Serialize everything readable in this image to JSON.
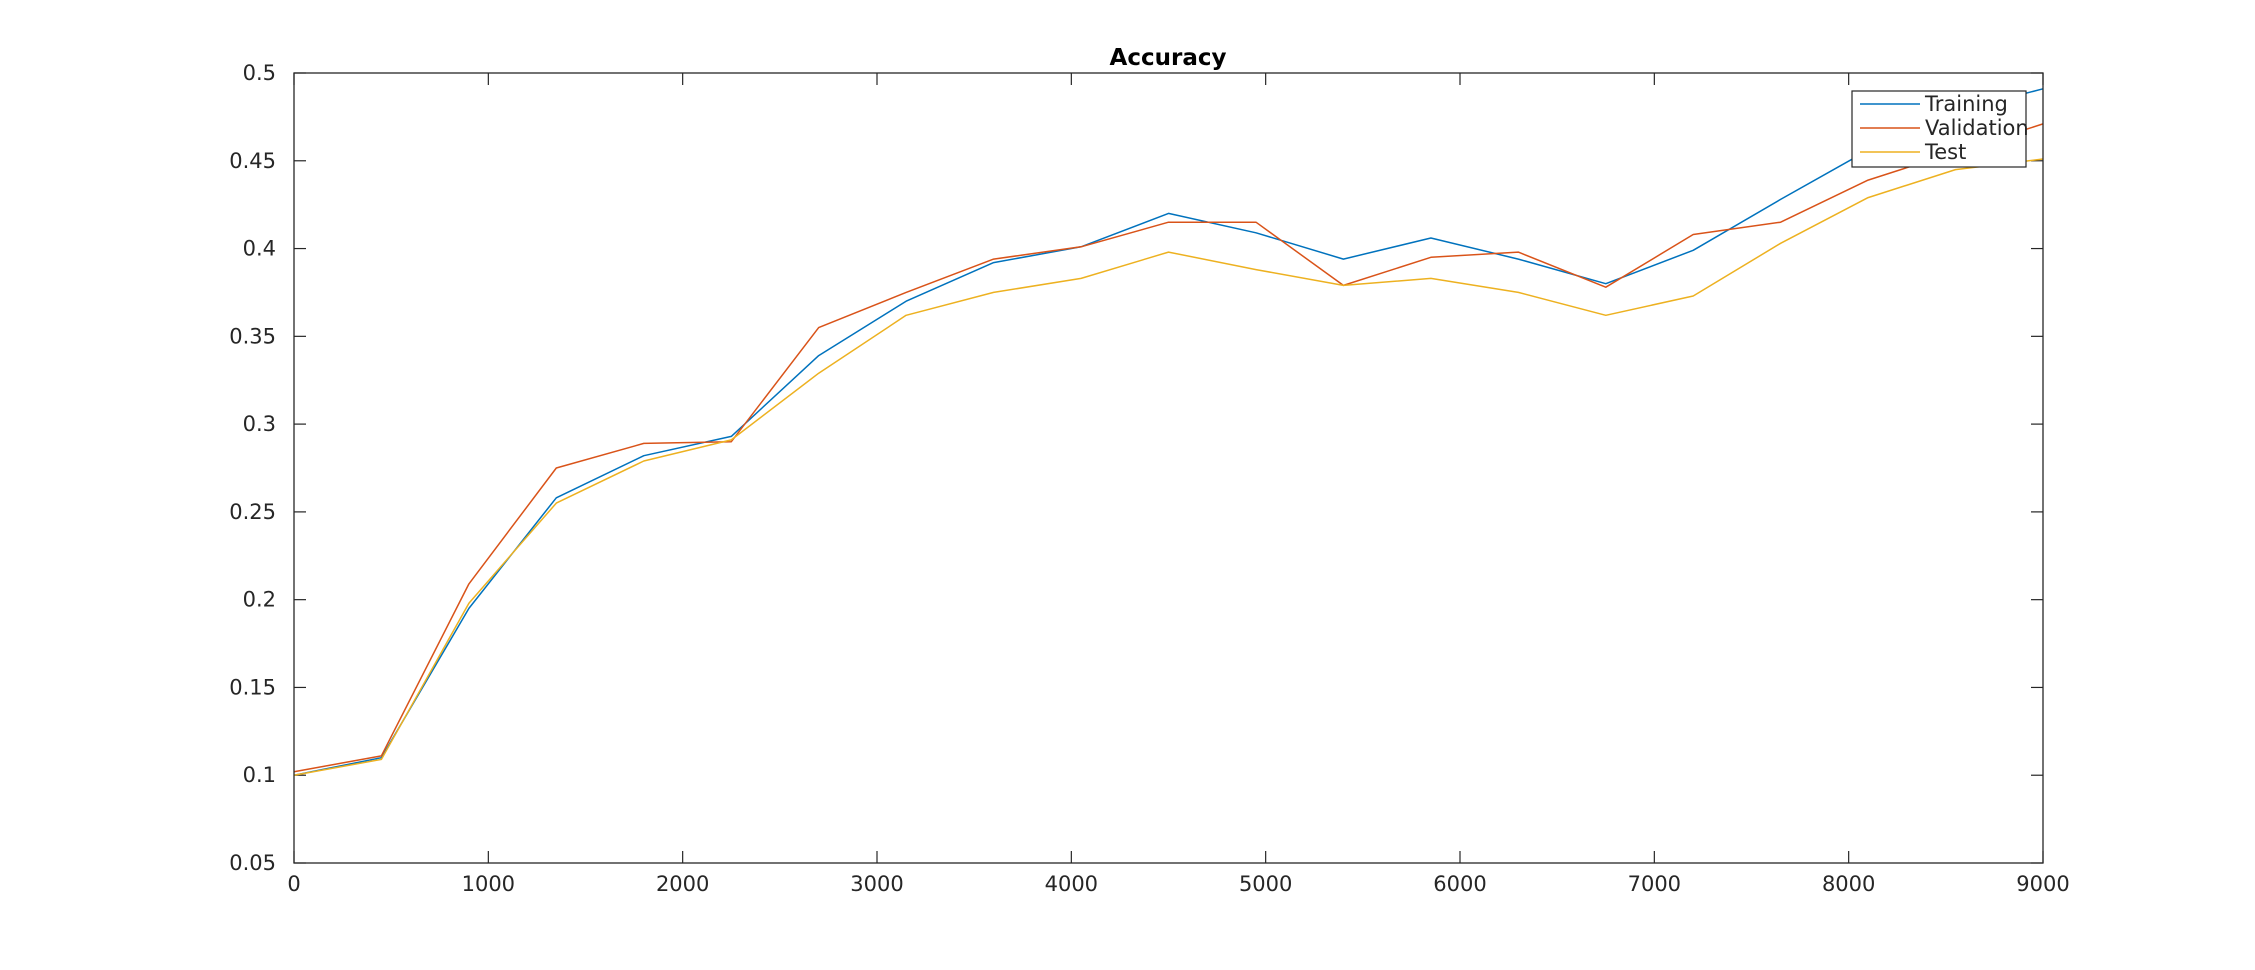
{
  "chart_data": {
    "type": "line",
    "title": "Accuracy",
    "xlabel": "",
    "ylabel": "",
    "xlim": [
      0,
      9000
    ],
    "ylim": [
      0.05,
      0.5
    ],
    "xticks": [
      0,
      1000,
      2000,
      3000,
      4000,
      5000,
      6000,
      7000,
      8000,
      9000
    ],
    "yticks": [
      0.05,
      0.1,
      0.15,
      0.2,
      0.25,
      0.3,
      0.35,
      0.4,
      0.45,
      0.5
    ],
    "xtick_labels": [
      "0",
      "1000",
      "2000",
      "3000",
      "4000",
      "5000",
      "6000",
      "7000",
      "8000",
      "9000"
    ],
    "ytick_labels": [
      "0.05",
      "0.1",
      "0.15",
      "0.2",
      "0.25",
      "0.3",
      "0.35",
      "0.4",
      "0.45",
      "0.5"
    ],
    "grid": false,
    "legend_position": "top-right",
    "x": [
      0,
      450,
      900,
      1350,
      1800,
      2250,
      2700,
      3150,
      3600,
      4050,
      4500,
      4950,
      5400,
      5850,
      6300,
      6750,
      7200,
      7650,
      8100,
      8550,
      9000
    ],
    "series": [
      {
        "name": "Training",
        "color": "#0072BD",
        "values": [
          0.1,
          0.11,
          0.195,
          0.258,
          0.282,
          0.293,
          0.339,
          0.37,
          0.392,
          0.401,
          0.42,
          0.409,
          0.394,
          0.406,
          0.394,
          0.38,
          0.399,
          0.428,
          0.456,
          0.478,
          0.491
        ]
      },
      {
        "name": "Validation",
        "color": "#D95319",
        "values": [
          0.102,
          0.111,
          0.209,
          0.275,
          0.289,
          0.29,
          0.355,
          0.375,
          0.394,
          0.401,
          0.415,
          0.415,
          0.379,
          0.395,
          0.398,
          0.378,
          0.408,
          0.415,
          0.439,
          0.455,
          0.471
        ]
      },
      {
        "name": "Test",
        "color": "#EDB120",
        "values": [
          0.1,
          0.109,
          0.198,
          0.255,
          0.279,
          0.291,
          0.329,
          0.362,
          0.375,
          0.383,
          0.398,
          0.388,
          0.379,
          0.383,
          0.375,
          0.362,
          0.373,
          0.403,
          0.429,
          0.445,
          0.451
        ]
      }
    ]
  }
}
